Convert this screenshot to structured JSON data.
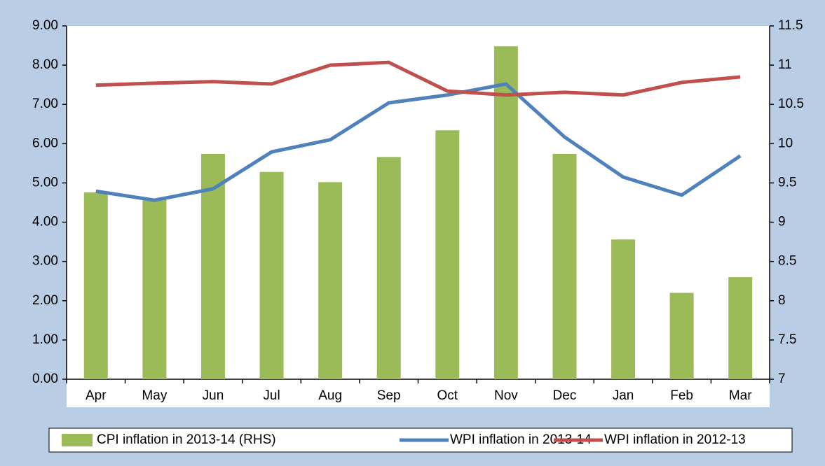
{
  "chart_data": {
    "type": "bar_line",
    "categories": [
      "Apr",
      "May",
      "Jun",
      "Jul",
      "Aug",
      "Sep",
      "Oct",
      "Nov",
      "Dec",
      "Jan",
      "Feb",
      "Mar"
    ],
    "series": [
      {
        "name": "CPI inflation in 2013-14 (RHS)",
        "type": "bar",
        "axis": "y2",
        "color": "#9bbb59",
        "values": [
          9.38,
          9.29,
          9.87,
          9.64,
          9.51,
          9.83,
          10.17,
          11.24,
          9.87,
          8.78,
          8.1,
          8.3
        ]
      },
      {
        "name": "WPI inflation in 2013-14",
        "type": "line",
        "color": "#4f81bd",
        "values": [
          4.79,
          4.56,
          4.85,
          5.79,
          6.1,
          7.04,
          7.24,
          7.52,
          6.17,
          5.15,
          4.69,
          5.69
        ]
      },
      {
        "name": "WPI inflation in 2012-13",
        "type": "line",
        "color": "#c0504d",
        "values": [
          7.49,
          7.54,
          7.58,
          7.52,
          8.0,
          8.07,
          7.34,
          7.24,
          7.31,
          7.24,
          7.56,
          7.7
        ]
      }
    ],
    "ylim": [
      0,
      9
    ],
    "yticks": [
      {
        "value": 0,
        "label": "0.00"
      },
      {
        "value": 1,
        "label": "1.00"
      },
      {
        "value": 2,
        "label": "2.00"
      },
      {
        "value": 3,
        "label": "3.00"
      },
      {
        "value": 4,
        "label": "4.00"
      },
      {
        "value": 5,
        "label": "5.00"
      },
      {
        "value": 6,
        "label": "6.00"
      },
      {
        "value": 7,
        "label": "7.00"
      },
      {
        "value": 8,
        "label": "8.00"
      },
      {
        "value": 9,
        "label": "9.00"
      }
    ],
    "y2lim": [
      7,
      11.5
    ],
    "y2ticks": [
      7,
      7.5,
      8,
      8.5,
      9,
      9.5,
      10,
      10.5,
      11,
      11.5
    ],
    "legend": "bottom"
  }
}
